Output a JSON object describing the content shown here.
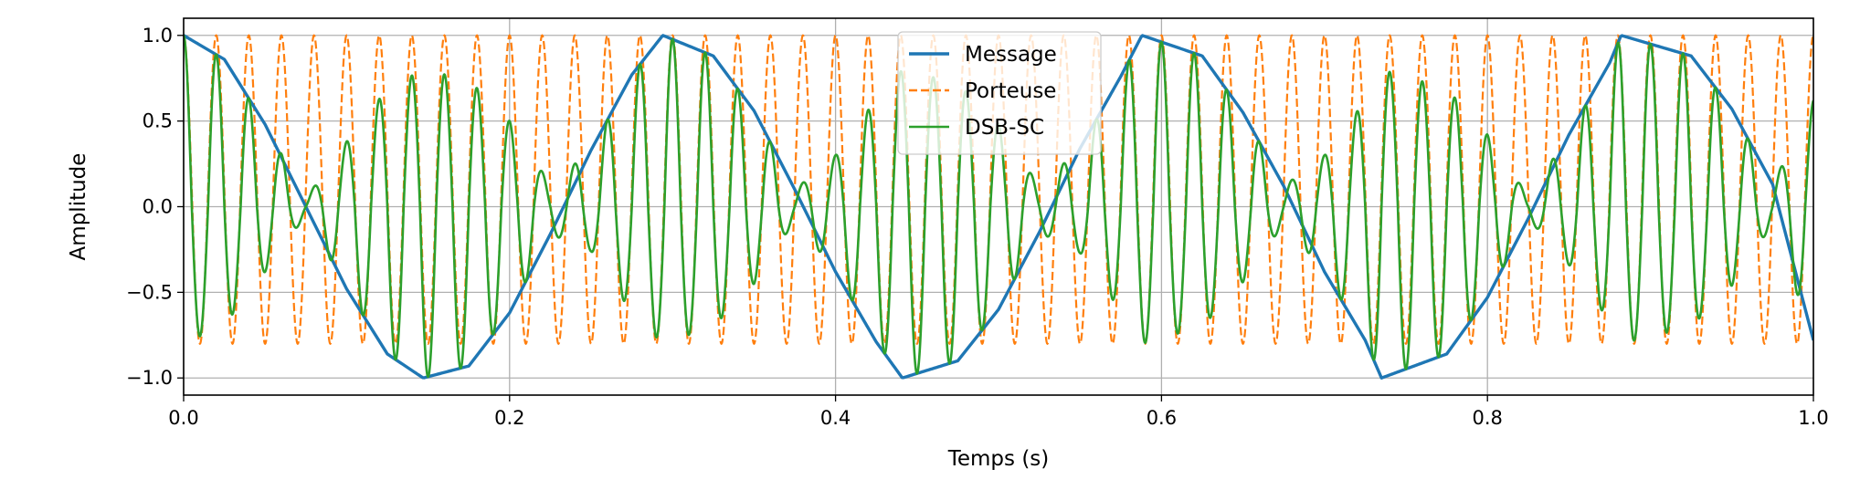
{
  "chart_data": {
    "type": "line",
    "title": "",
    "xlabel": "Temps (s)",
    "ylabel": "Amplitude",
    "xlim": [
      0,
      1
    ],
    "ylim": [
      -1.1,
      1.1
    ],
    "grid": true,
    "legend_position": "top-center",
    "x_ticks": [
      0.0,
      0.2,
      0.4,
      0.6,
      0.8,
      1.0
    ],
    "x_tick_labels": [
      "0.0",
      "0.2",
      "0.4",
      "0.6",
      "0.8",
      "1.0"
    ],
    "y_ticks": [
      1.0,
      0.5,
      0.0,
      -0.5,
      -1.0
    ],
    "y_tick_labels": [
      "1.0",
      "0.5",
      "0.0",
      "−0.5",
      "−1.0"
    ],
    "series": [
      {
        "name": "Message",
        "color": "#1f77b4",
        "style": "solid",
        "x": [
          0.0,
          0.025,
          0.05,
          0.075,
          0.1,
          0.125,
          0.147,
          0.175,
          0.2,
          0.225,
          0.25,
          0.275,
          0.294,
          0.325,
          0.35,
          0.375,
          0.4,
          0.425,
          0.441,
          0.475,
          0.5,
          0.525,
          0.55,
          0.575,
          0.588,
          0.625,
          0.65,
          0.675,
          0.7,
          0.725,
          0.735,
          0.775,
          0.8,
          0.825,
          0.85,
          0.875,
          0.882,
          0.925,
          0.95,
          0.975,
          1.0
        ],
        "values": [
          1.0,
          0.86,
          0.48,
          0.0,
          -0.48,
          -0.86,
          -1.0,
          -0.93,
          -0.62,
          -0.16,
          0.33,
          0.77,
          1.0,
          0.88,
          0.56,
          0.1,
          -0.38,
          -0.79,
          -1.0,
          -0.9,
          -0.6,
          -0.15,
          0.34,
          0.76,
          1.0,
          0.88,
          0.55,
          0.12,
          -0.38,
          -0.78,
          -1.0,
          -0.86,
          -0.53,
          -0.07,
          0.42,
          0.84,
          1.0,
          0.88,
          0.57,
          0.13,
          -0.78
        ]
      },
      {
        "name": "Porteuse",
        "color": "#ff7f0e",
        "style": "dashed",
        "frequency_hz": 50,
        "values_max": 1.0,
        "values_min": -0.8
      },
      {
        "name": "DSB-SC",
        "color": "#2ca02c",
        "style": "solid",
        "frequency_hz": 50,
        "envelope_x": [
          0.0,
          0.025,
          0.05,
          0.075,
          0.1,
          0.125,
          0.147,
          0.175,
          0.2,
          0.225,
          0.25,
          0.275,
          0.294,
          0.325,
          0.35,
          0.375,
          0.4,
          0.425,
          0.441,
          0.475,
          0.5,
          0.525,
          0.55,
          0.575,
          0.588,
          0.625,
          0.65,
          0.675,
          0.7,
          0.725,
          0.735,
          0.775,
          0.8,
          0.825,
          0.85,
          0.875,
          0.882,
          0.925,
          0.95,
          0.975,
          1.0
        ],
        "envelope_max": [
          1.0,
          0.86,
          0.48,
          0.05,
          0.38,
          0.69,
          0.8,
          0.74,
          0.5,
          0.13,
          0.33,
          0.77,
          1.0,
          0.88,
          0.56,
          0.1,
          0.3,
          0.63,
          0.8,
          0.72,
          0.48,
          0.12,
          0.34,
          0.76,
          1.0,
          0.88,
          0.55,
          0.12,
          0.3,
          0.62,
          0.8,
          0.69,
          0.42,
          0.06,
          0.42,
          0.84,
          1.0,
          0.88,
          0.57,
          0.13,
          0.62
        ],
        "envelope_min": [
          -0.8,
          -0.69,
          -0.38,
          -0.05,
          -0.48,
          -0.86,
          -1.0,
          -0.93,
          -0.62,
          -0.16,
          -0.26,
          -0.62,
          -0.8,
          -0.7,
          -0.45,
          -0.08,
          -0.38,
          -0.79,
          -1.0,
          -0.9,
          -0.6,
          -0.15,
          -0.27,
          -0.61,
          -0.8,
          -0.7,
          -0.44,
          -0.1,
          -0.38,
          -0.78,
          -1.0,
          -0.86,
          -0.53,
          -0.07,
          -0.34,
          -0.67,
          -0.8,
          -0.7,
          -0.46,
          -0.1,
          -0.78
        ]
      }
    ]
  }
}
